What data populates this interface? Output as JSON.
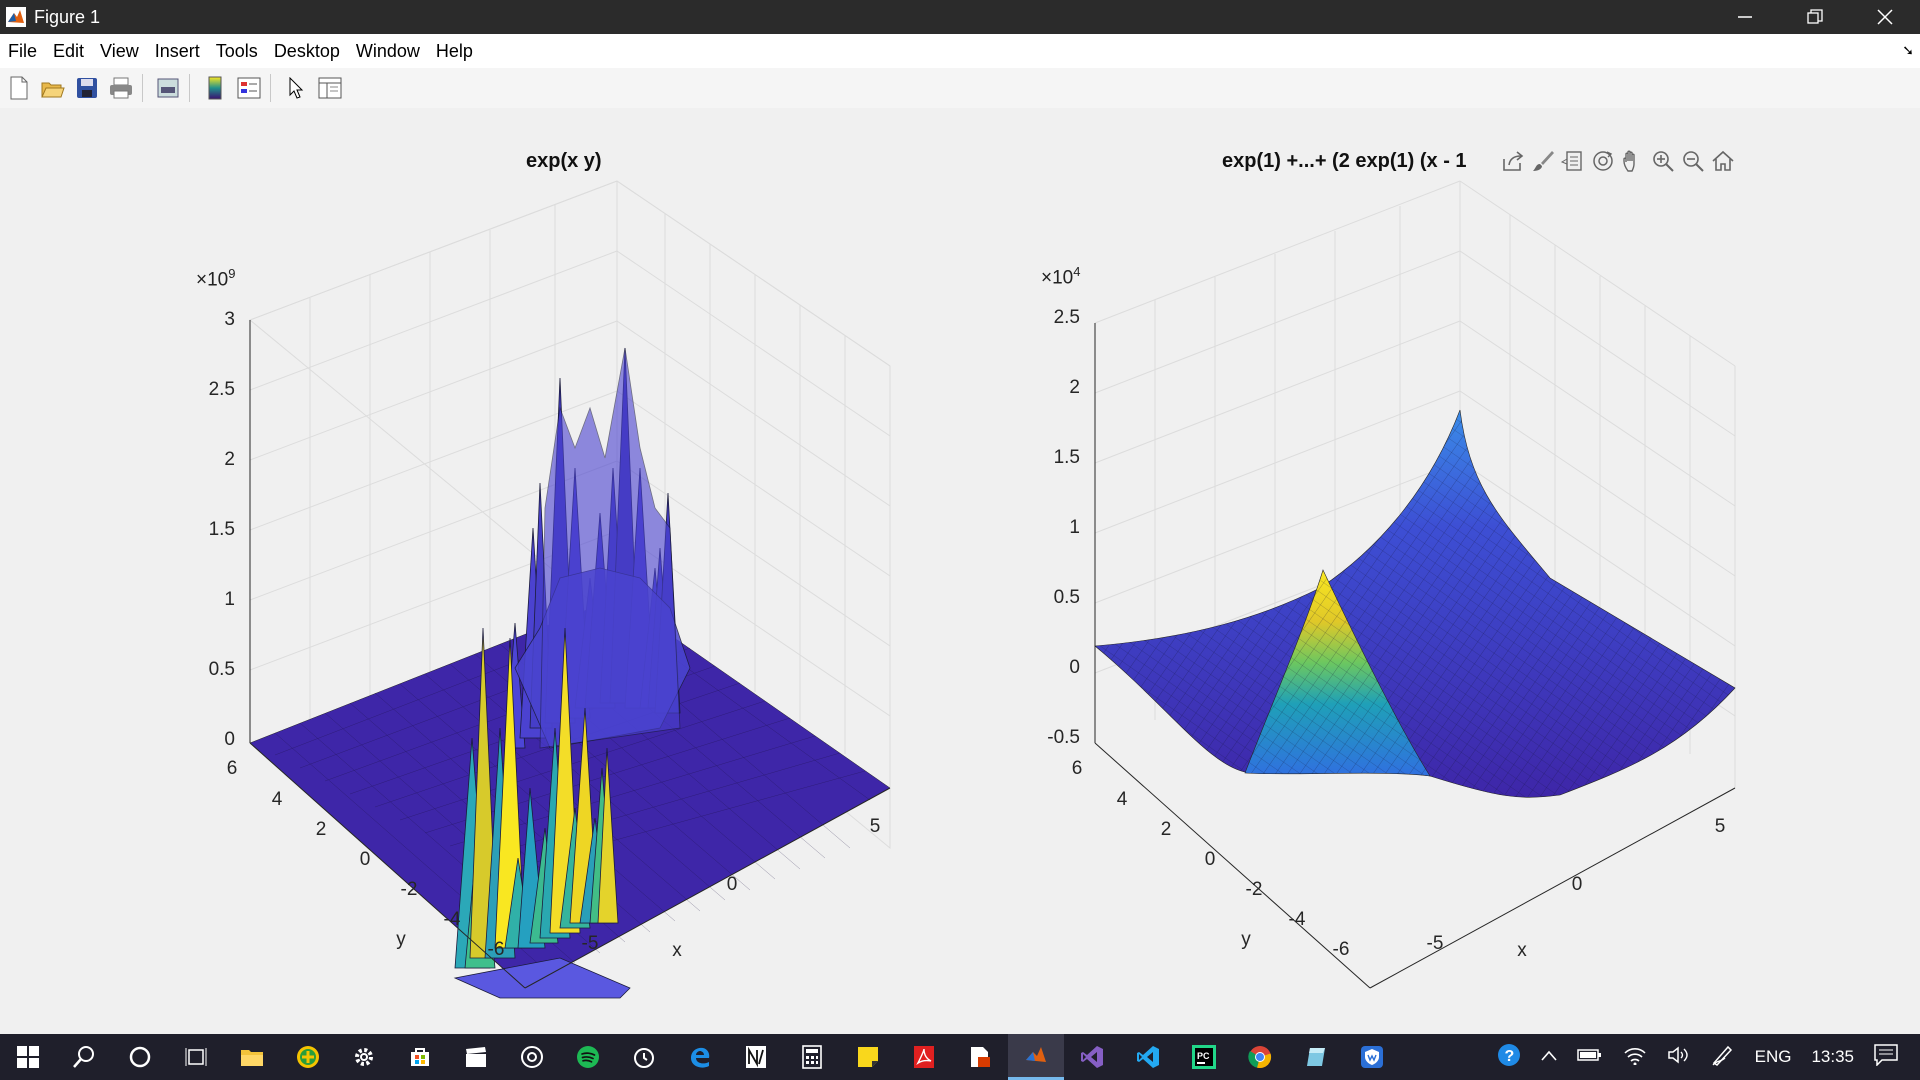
{
  "window": {
    "title": "Figure 1"
  },
  "menu": [
    "File",
    "Edit",
    "View",
    "Insert",
    "Tools",
    "Desktop",
    "Window",
    "Help"
  ],
  "toolbar_icons": [
    "new-figure-icon",
    "open-icon",
    "save-icon",
    "print-icon",
    "print-preview-icon",
    "colorbar-icon",
    "legend-icon",
    "pointer-icon",
    "property-inspector-icon"
  ],
  "plots": [
    {
      "title": "exp(x y)",
      "z_exponent_base": "×10",
      "z_exponent_power": "9",
      "z_ticks": [
        "3",
        "2.5",
        "2",
        "1.5",
        "1",
        "0.5",
        "0"
      ],
      "y_ticks": [
        "6",
        "4",
        "2",
        "0",
        "-2",
        "-4",
        "-6"
      ],
      "x_ticks": [
        "-5",
        "0",
        "5"
      ],
      "xlabel": "x",
      "ylabel": "y"
    },
    {
      "title": "exp(1) +...+ (2 exp(1) (x - 1",
      "z_exponent_base": "×10",
      "z_exponent_power": "4",
      "z_ticks": [
        "2.5",
        "2",
        "1.5",
        "1",
        "0.5",
        "0",
        "-0.5"
      ],
      "y_ticks": [
        "6",
        "4",
        "2",
        "0",
        "-2",
        "-4",
        "-6"
      ],
      "x_ticks": [
        "-5",
        "0",
        "5"
      ],
      "xlabel": "x",
      "ylabel": "y"
    }
  ],
  "axes_toolbar_icons": [
    "export-icon",
    "brush-icon",
    "data-tips-icon",
    "rotate-3d-icon",
    "pan-icon",
    "zoom-in-icon",
    "zoom-out-icon",
    "home-icon"
  ],
  "taskbar": {
    "icons": [
      "windows-start-icon",
      "search-icon",
      "cortana-icon",
      "task-view-icon",
      "file-explorer-icon",
      "plus-app-icon",
      "settings-icon",
      "store-icon",
      "movies-icon",
      "groove-icon",
      "spotify-icon",
      "alarm-icon",
      "edge-icon",
      "notepad-icon",
      "calculator-icon",
      "sticky-notes-icon",
      "acrobat-icon",
      "office-lens-icon",
      "matlab-icon",
      "visual-studio-icon",
      "vscode-icon",
      "pycharm-icon",
      "chrome-icon",
      "paint-3d-icon",
      "windscribe-icon"
    ],
    "active_icon": "matlab-icon",
    "language": "ENG",
    "time": "13:35"
  }
}
